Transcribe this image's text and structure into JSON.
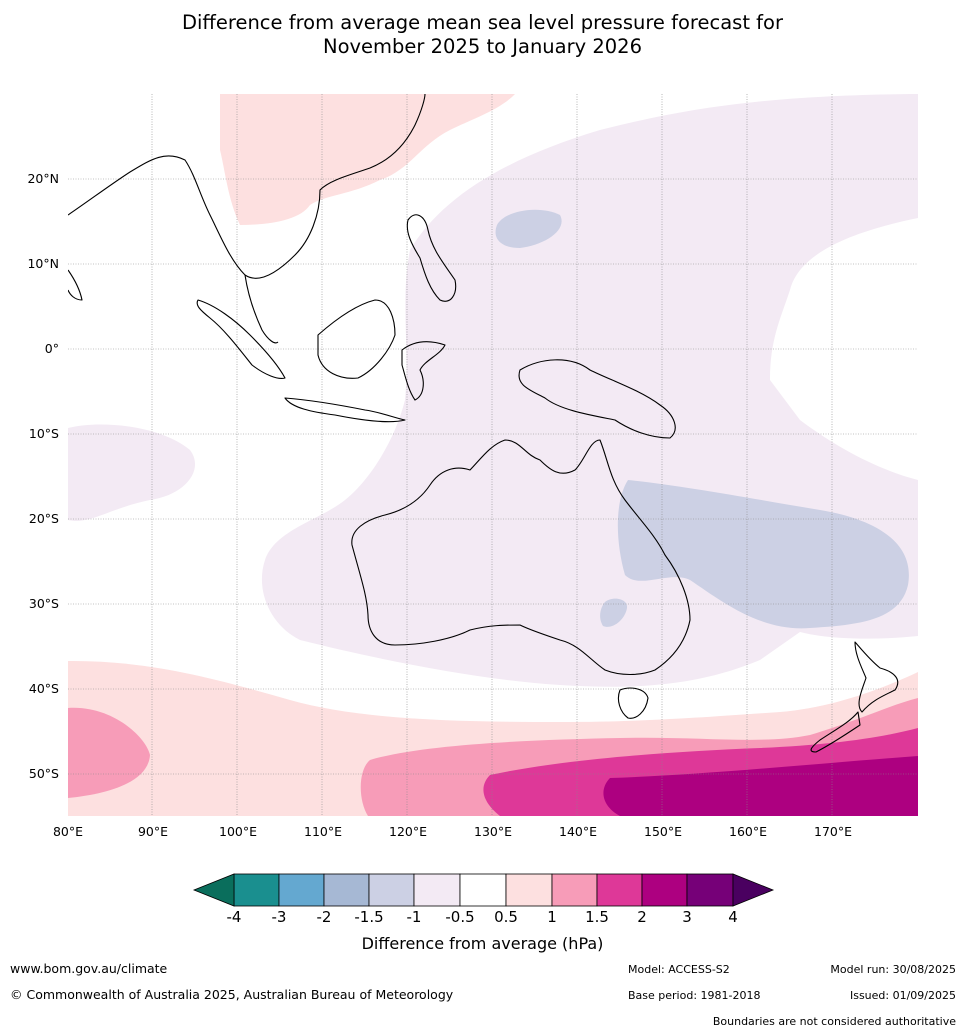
{
  "title_line1": "Difference from average mean sea level pressure forecast for",
  "title_line2": "November 2025 to January 2026",
  "lat_labels": [
    "20°N",
    "10°N",
    "0°",
    "10°S",
    "20°S",
    "30°S",
    "40°S",
    "50°S"
  ],
  "lon_labels": [
    "80°E",
    "90°E",
    "100°E",
    "110°E",
    "120°E",
    "130°E",
    "140°E",
    "150°E",
    "160°E",
    "170°E"
  ],
  "colorbar": {
    "title": "Difference from average (hPa)",
    "ticks": [
      "-4",
      "-3",
      "-2",
      "-1.5",
      "-1",
      "-0.5",
      "0.5",
      "1",
      "1.5",
      "2",
      "3",
      "4"
    ],
    "colors": [
      "#1a8f8f",
      "#64a8d0",
      "#a6b8d4",
      "#ccd0e4",
      "#f3eaf4",
      "#ffffff",
      "#fde0e0",
      "#f79cb8",
      "#de3898",
      "#ad0080",
      "#760078"
    ],
    "under_color": "#0a6e5c",
    "over_color": "#4a0060"
  },
  "footer": {
    "website": "www.bom.gov.au/climate",
    "copyright": "© Commonwealth of Australia 2025, Australian Bureau of Meteorology",
    "model": "Model: ACCESS-S2",
    "base_period": "Base period: 1981-2018",
    "model_run": "Model run: 30/08/2025",
    "issued": "Issued: 01/09/2025",
    "disclaimer": "Boundaries are not considered authoritative"
  }
}
